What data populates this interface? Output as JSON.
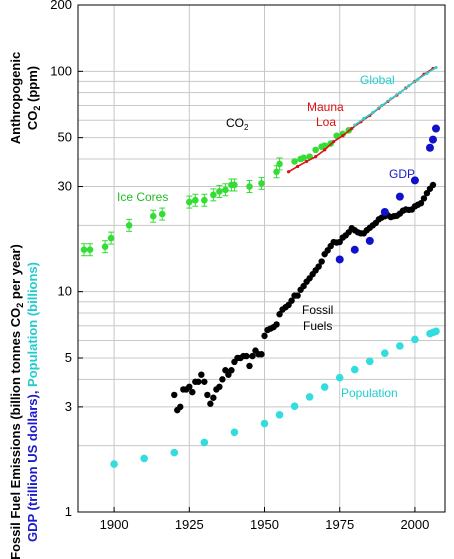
{
  "chart_data": {
    "type": "scatter",
    "y_scale": "log",
    "grid": true,
    "x_range": [
      1888,
      2010
    ],
    "y_range": [
      1,
      200
    ],
    "x_ticks": [
      "1900",
      "1925",
      "1950",
      "1975",
      "2000"
    ],
    "y_ticks": [
      "1",
      "3",
      "5",
      "10",
      "30",
      "50",
      "100",
      "200"
    ],
    "y_label_top_line1": "Anthropogenic",
    "y_label_top_line2_pre": "CO",
    "y_label_top_line2_sub": "2",
    "y_label_top_line2_post": " (ppm)",
    "y_label_bottom_line1_pre": "Fossil Fuel Emissions (billion tonnes CO",
    "y_label_bottom_line1_sub": "2",
    "y_label_bottom_line1_post": " per year)",
    "y_label_bottom_line2_a": "GDP (trillion US dollars), ",
    "y_label_bottom_line2_b": "Population (billions)",
    "annotations": {
      "global": "Global",
      "mauna": "Mauna",
      "loa": "Loa",
      "co2_pre": "CO",
      "co2_sub": "2",
      "ice_cores": "Ice Cores",
      "gdp": "GDP",
      "fossil": "Fossil",
      "fuels": "Fuels",
      "population": "Population"
    },
    "colors": {
      "ice_cores": "#33dd33",
      "mauna_loa": "#dd1111",
      "global": "#33cccc",
      "fossil_fuels": "#000000",
      "gdp": "#1111cc",
      "population": "#33dddd",
      "label_blue": "#1a1acc",
      "label_cyan": "#22cccc"
    },
    "series": [
      {
        "name": "Ice Cores",
        "x": [
          1890,
          1892,
          1897,
          1899,
          1905,
          1913,
          1916,
          1925,
          1927,
          1930,
          1933,
          1935,
          1937,
          1939,
          1940,
          1945,
          1949,
          1954,
          1955,
          1960,
          1962,
          1963,
          1965,
          1967,
          1969,
          1970,
          1972,
          1974,
          1976,
          1978
        ],
        "y": [
          15.5,
          15.5,
          16,
          17.5,
          20,
          22,
          22.5,
          25.5,
          26,
          26,
          27.5,
          28.5,
          29,
          30.5,
          30.5,
          30,
          31,
          35,
          38,
          39,
          40,
          40.5,
          41,
          44,
          45.5,
          46,
          47,
          51,
          52,
          54
        ]
      },
      {
        "name": "Mauna Loa",
        "x": [
          1958,
          1961,
          1964,
          1967,
          1970,
          1973,
          1976,
          1979,
          1982,
          1985,
          1988,
          1991,
          1994,
          1997,
          2000,
          2003,
          2006
        ],
        "y": [
          35,
          37,
          39,
          41,
          44,
          48,
          51,
          55,
          59,
          63,
          68,
          73,
          78,
          84,
          90,
          97,
          103
        ]
      },
      {
        "name": "Global",
        "x": [
          1980,
          1983,
          1986,
          1989,
          1992,
          1995,
          1998,
          2001,
          2004,
          2007
        ],
        "y": [
          57,
          61,
          65,
          70,
          75,
          80,
          86,
          92,
          98,
          104
        ]
      },
      {
        "name": "Fossil Fuels",
        "x": [
          1920,
          1921,
          1922,
          1923,
          1924,
          1925,
          1926,
          1927,
          1928,
          1929,
          1930,
          1931,
          1932,
          1933,
          1934,
          1935,
          1936,
          1937,
          1938,
          1939,
          1940,
          1941,
          1942,
          1943,
          1944,
          1945,
          1946,
          1947,
          1948,
          1949,
          1950,
          1951,
          1952,
          1953,
          1954,
          1955,
          1956,
          1957,
          1958,
          1959,
          1960,
          1961,
          1962,
          1963,
          1964,
          1965,
          1966,
          1967,
          1968,
          1969,
          1970,
          1971,
          1972,
          1973,
          1974,
          1975,
          1976,
          1977,
          1978,
          1979,
          1980,
          1981,
          1982,
          1983,
          1984,
          1985,
          1986,
          1987,
          1988,
          1989,
          1990,
          1991,
          1992,
          1993,
          1994,
          1995,
          1996,
          1997,
          1998,
          1999,
          2000,
          2001,
          2002,
          2003,
          2004,
          2005,
          2006
        ],
        "y": [
          3.4,
          2.9,
          3.0,
          3.6,
          3.6,
          3.7,
          3.5,
          3.9,
          3.9,
          4.2,
          3.9,
          3.4,
          3.1,
          3.3,
          3.6,
          3.7,
          4.0,
          4.4,
          4.2,
          4.4,
          4.8,
          5.0,
          5.0,
          5.1,
          5.1,
          4.6,
          5.1,
          5.4,
          5.2,
          5.2,
          6.3,
          6.7,
          6.8,
          6.9,
          7.1,
          7.9,
          8.3,
          8.5,
          8.7,
          9.1,
          9.6,
          9.6,
          10.2,
          10.6,
          11.1,
          11.5,
          12.0,
          12.5,
          13.0,
          13.7,
          14.8,
          15.4,
          16.1,
          16.8,
          16.7,
          16.8,
          17.6,
          18.0,
          18.6,
          19.4,
          19.0,
          18.6,
          18.4,
          18.4,
          19.0,
          19.5,
          20.0,
          20.5,
          21.3,
          21.7,
          22.0,
          22.2,
          21.8,
          22.0,
          22.1,
          22.6,
          23.3,
          23.6,
          23.5,
          23.6,
          24.4,
          24.8,
          25.2,
          26.5,
          28.0,
          29.3,
          30.5
        ]
      },
      {
        "name": "GDP",
        "x": [
          1975,
          1980,
          1985,
          1990,
          1995,
          2000,
          2005,
          2006,
          2007
        ],
        "y": [
          14,
          15.5,
          17,
          23,
          27,
          32,
          45,
          49,
          55
        ]
      },
      {
        "name": "Population",
        "x": [
          1900,
          1910,
          1920,
          1930,
          1940,
          1950,
          1955,
          1960,
          1965,
          1970,
          1975,
          1980,
          1985,
          1990,
          1995,
          2000,
          2005,
          2006,
          2007
        ],
        "y": [
          1.65,
          1.75,
          1.86,
          2.07,
          2.3,
          2.52,
          2.76,
          3.02,
          3.33,
          3.69,
          4.07,
          4.43,
          4.83,
          5.26,
          5.67,
          6.07,
          6.45,
          6.53,
          6.61
        ]
      }
    ]
  }
}
